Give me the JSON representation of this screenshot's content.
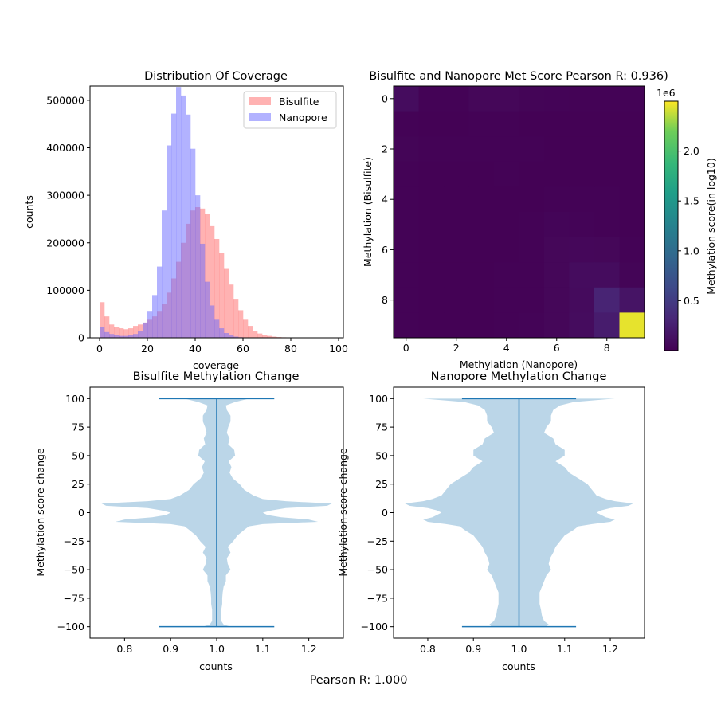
{
  "figure_title": "Pearson R: 1.000",
  "chart_data": [
    {
      "type": "bar",
      "title": "Distribution Of Coverage",
      "xlabel": "coverage",
      "ylabel": "counts",
      "xlim": [
        -4,
        102
      ],
      "ylim": [
        0,
        530000
      ],
      "xticks": [
        0,
        20,
        40,
        60,
        80,
        100
      ],
      "yticks": [
        0,
        100000,
        200000,
        300000,
        400000,
        500000
      ],
      "legend": "top-right",
      "bin_width": 2,
      "bin_start": 0,
      "series": [
        {
          "name": "Bisulfite",
          "color": "#ff6666",
          "alpha": 0.5,
          "values": [
            75000,
            45000,
            28000,
            22000,
            20000,
            18000,
            20000,
            25000,
            28000,
            32000,
            38000,
            45000,
            55000,
            72000,
            95000,
            125000,
            160000,
            200000,
            240000,
            268000,
            275000,
            272000,
            260000,
            235000,
            208000,
            178000,
            145000,
            112000,
            82000,
            58000,
            38000,
            25000,
            15000,
            9000,
            6000,
            4000,
            2500,
            1500,
            1000,
            600,
            400,
            300,
            200,
            120,
            80,
            50,
            30,
            20,
            10,
            5
          ]
        },
        {
          "name": "Nanopore",
          "color": "#6666ff",
          "alpha": 0.5,
          "values": [
            22000,
            12000,
            8000,
            5000,
            4000,
            4000,
            5000,
            8000,
            15000,
            32000,
            55000,
            90000,
            150000,
            268000,
            405000,
            472000,
            528000,
            510000,
            470000,
            398000,
            300000,
            198000,
            118000,
            68000,
            38000,
            20000,
            10000,
            5000,
            2500,
            1200,
            600,
            300,
            150,
            80,
            40,
            20,
            10,
            5,
            0,
            0,
            0,
            0,
            0,
            0,
            0,
            0,
            0,
            0,
            0,
            0
          ]
        }
      ]
    },
    {
      "type": "heatmap",
      "title": "Bisulfite and Nanopore Met Score Pearson R: 0.936)",
      "xlabel": "Methylation (Nanopore)",
      "ylabel": "Methylation (Bisulfite)",
      "xticks": [
        0,
        2,
        4,
        6,
        8
      ],
      "yticks": [
        0,
        2,
        4,
        6,
        8
      ],
      "colormap": "viridis",
      "colorbar": {
        "label": "Methylation score(in log10)",
        "offset_text": "1e6",
        "ticks": [
          "0.5",
          "1.0",
          "1.5",
          "2.0"
        ],
        "tick_values": [
          500000,
          1000000,
          1500000,
          2000000
        ],
        "range": [
          0,
          2500000
        ]
      },
      "values": [
        [
          90000,
          20000,
          20000,
          45000,
          45000,
          30000,
          25000,
          20000,
          20000,
          20000
        ],
        [
          20000,
          10000,
          10000,
          15000,
          15000,
          10000,
          10000,
          10000,
          10000,
          10000
        ],
        [
          30000,
          20000,
          15000,
          15000,
          20000,
          15000,
          10000,
          10000,
          10000,
          10000
        ],
        [
          15000,
          10000,
          10000,
          10000,
          15000,
          10000,
          10000,
          10000,
          10000,
          10000
        ],
        [
          15000,
          10000,
          10000,
          10000,
          10000,
          10000,
          15000,
          15000,
          15000,
          10000
        ],
        [
          15000,
          10000,
          10000,
          10000,
          10000,
          20000,
          35000,
          25000,
          15000,
          10000
        ],
        [
          15000,
          10000,
          10000,
          10000,
          10000,
          15000,
          45000,
          50000,
          45000,
          20000
        ],
        [
          15000,
          10000,
          10000,
          10000,
          15000,
          15000,
          45000,
          85000,
          90000,
          30000
        ],
        [
          15000,
          10000,
          10000,
          10000,
          15000,
          20000,
          45000,
          80000,
          280000,
          150000
        ],
        [
          15000,
          10000,
          10000,
          10000,
          15000,
          25000,
          45000,
          90000,
          220000,
          2450000
        ]
      ]
    },
    {
      "type": "violin",
      "title": "Bisulfite Methylation Change",
      "xlabel": "counts",
      "ylabel": "Methylation score change",
      "xlim": [
        0.725,
        1.275
      ],
      "ylim": [
        -110,
        110
      ],
      "xticks": [
        0.8,
        0.9,
        1.0,
        1.1,
        1.2
      ],
      "xtick_labels": [
        "0.8",
        "0.9",
        "1.0",
        "1.1",
        "1.2"
      ],
      "yticks": [
        -100,
        -75,
        -50,
        -25,
        0,
        25,
        50,
        75,
        100
      ],
      "color": "#1f77b4",
      "position": 1.0,
      "extrema": [
        -100,
        100
      ],
      "profile_y": [
        100,
        97,
        94,
        90,
        85,
        80,
        75,
        70,
        65,
        60,
        55,
        50,
        45,
        40,
        35,
        30,
        25,
        20,
        15,
        12,
        10,
        8,
        6,
        4,
        2,
        0,
        -2,
        -4,
        -6,
        -8,
        -10,
        -12,
        -15,
        -20,
        -25,
        -30,
        -35,
        -40,
        -45,
        -50,
        -55,
        -60,
        -65,
        -70,
        -75,
        -80,
        -85,
        -90,
        -95,
        -98,
        -100
      ],
      "profile_w": [
        0.07,
        0.04,
        0.02,
        0.022,
        0.03,
        0.03,
        0.025,
        0.022,
        0.028,
        0.025,
        0.038,
        0.04,
        0.026,
        0.032,
        0.028,
        0.035,
        0.05,
        0.06,
        0.08,
        0.1,
        0.15,
        0.25,
        0.24,
        0.15,
        0.12,
        0.1,
        0.11,
        0.14,
        0.2,
        0.22,
        0.1,
        0.07,
        0.06,
        0.045,
        0.036,
        0.024,
        0.03,
        0.022,
        0.024,
        0.03,
        0.02,
        0.02,
        0.015,
        0.013,
        0.012,
        0.012,
        0.01,
        0.01,
        0.01,
        0.015,
        0.03
      ]
    },
    {
      "type": "violin",
      "title": "Nanopore Methylation Change",
      "xlabel": "counts",
      "ylabel": "Methylation score change",
      "xlim": [
        0.725,
        1.275
      ],
      "ylim": [
        -110,
        110
      ],
      "xticks": [
        0.8,
        0.9,
        1.0,
        1.1,
        1.2
      ],
      "xtick_labels": [
        "0.8",
        "0.9",
        "1.0",
        "1.1",
        "1.2"
      ],
      "yticks": [
        -100,
        -75,
        -50,
        -25,
        0,
        25,
        50,
        75,
        100
      ],
      "color": "#1f77b4",
      "position": 1.0,
      "extrema": [
        -100,
        100
      ],
      "profile_y": [
        100,
        97,
        94,
        90,
        85,
        80,
        75,
        70,
        65,
        60,
        55,
        50,
        45,
        40,
        35,
        30,
        25,
        20,
        15,
        12,
        10,
        8,
        6,
        4,
        2,
        0,
        -2,
        -4,
        -6,
        -8,
        -10,
        -12,
        -15,
        -20,
        -25,
        -30,
        -35,
        -40,
        -45,
        -50,
        -55,
        -60,
        -65,
        -70,
        -75,
        -80,
        -85,
        -90,
        -95,
        -98,
        -100
      ],
      "profile_w": [
        0.21,
        0.12,
        0.09,
        0.075,
        0.07,
        0.07,
        0.06,
        0.055,
        0.075,
        0.08,
        0.1,
        0.1,
        0.08,
        0.1,
        0.11,
        0.13,
        0.15,
        0.16,
        0.17,
        0.19,
        0.21,
        0.25,
        0.24,
        0.2,
        0.18,
        0.17,
        0.18,
        0.19,
        0.21,
        0.2,
        0.16,
        0.13,
        0.12,
        0.1,
        0.09,
        0.08,
        0.075,
        0.068,
        0.065,
        0.07,
        0.06,
        0.055,
        0.05,
        0.045,
        0.045,
        0.045,
        0.048,
        0.05,
        0.055,
        0.065,
        0.06
      ]
    }
  ]
}
